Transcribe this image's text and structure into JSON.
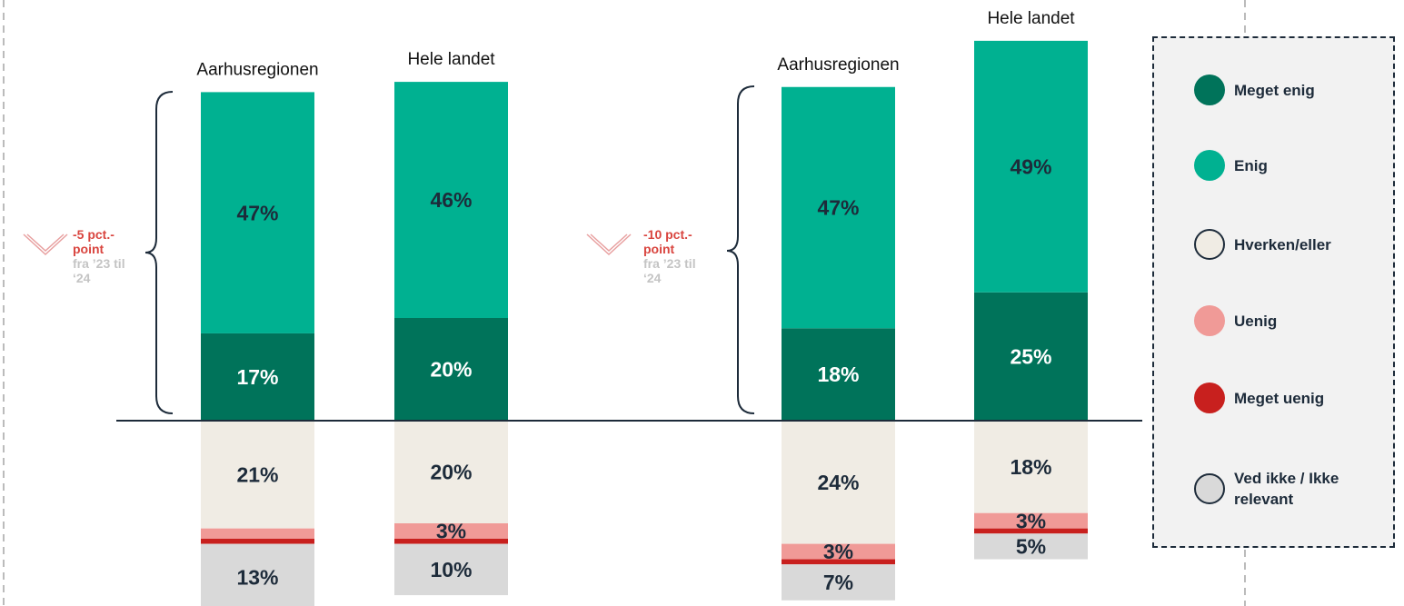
{
  "chart_data": {
    "type": "bar",
    "categories": [
      "Aarhusregionen",
      "Hele landet",
      "Aarhusregionen",
      "Hele landet"
    ],
    "series": [
      {
        "name": "Meget enig",
        "color": "#00735a",
        "values": [
          17,
          20,
          18,
          25
        ],
        "value_labels": [
          "17%",
          "20%",
          "18%",
          "25%"
        ]
      },
      {
        "name": "Enig",
        "color": "#00b191",
        "values": [
          47,
          46,
          47,
          49
        ],
        "value_labels": [
          "47%",
          "46%",
          "47%",
          "49%"
        ]
      },
      {
        "name": "Hverken/eller",
        "color": "#f0ece4",
        "values": [
          21,
          20,
          24,
          18
        ],
        "value_labels": [
          "21%",
          "20%",
          "24%",
          "18%"
        ]
      },
      {
        "name": "Uenig",
        "color": "#f09a97",
        "values": [
          2,
          3,
          3,
          3
        ],
        "value_labels": [
          null,
          "3%",
          "3%",
          "3%"
        ]
      },
      {
        "name": "Meget uenig",
        "color": "#c8201e",
        "values": [
          1,
          1,
          1,
          1
        ]
      },
      {
        "name": "Ved ikke / Ikke relevant",
        "color": "#d9d9d9",
        "values": [
          13,
          10,
          7,
          5
        ],
        "value_labels": [
          "13%",
          "10%",
          "7%",
          "5%"
        ]
      }
    ],
    "annotations": [
      {
        "change": "-5 pct.-point",
        "period": "fra ’23 til ‘24"
      },
      {
        "change": "-10 pct.-point",
        "period": "fra ’23 til ‘24"
      }
    ]
  }
}
